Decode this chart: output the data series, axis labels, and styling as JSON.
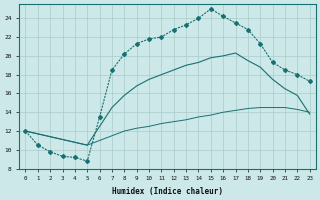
{
  "xlabel": "Humidex (Indice chaleur)",
  "background_color": "#cce8e8",
  "grid_color": "#aacccc",
  "line_color": "#1a7070",
  "xlim": [
    -0.5,
    23.5
  ],
  "ylim": [
    8,
    25.5
  ],
  "xticks": [
    0,
    1,
    2,
    3,
    4,
    5,
    6,
    7,
    8,
    9,
    10,
    11,
    12,
    13,
    14,
    15,
    16,
    17,
    18,
    19,
    20,
    21,
    22,
    23
  ],
  "yticks": [
    8,
    10,
    12,
    14,
    16,
    18,
    20,
    22,
    24
  ],
  "line1_x": [
    0,
    1,
    2,
    3,
    4,
    5,
    6,
    7,
    8,
    9,
    10,
    11,
    12,
    13,
    14,
    15,
    16,
    17,
    18,
    19,
    20,
    21,
    22,
    23
  ],
  "line1_y": [
    12,
    10.5,
    9.8,
    9.3,
    9.2,
    8.8,
    13.5,
    18.5,
    20.2,
    21.3,
    21.8,
    22.0,
    22.8,
    23.3,
    24.0,
    25.0,
    24.2,
    23.5,
    22.8,
    21.3,
    19.3,
    18.5,
    18.0,
    17.3
  ],
  "line2_x": [
    0,
    5,
    6,
    7,
    8,
    9,
    10,
    11,
    12,
    13,
    14,
    15,
    16,
    17,
    18,
    19,
    20,
    21,
    22,
    23
  ],
  "line2_y": [
    12,
    10.5,
    12.5,
    14.5,
    15.8,
    16.8,
    17.5,
    18.0,
    18.5,
    19.0,
    19.3,
    19.8,
    20.0,
    20.3,
    19.5,
    18.8,
    17.5,
    16.5,
    15.8,
    13.8
  ],
  "line3_x": [
    0,
    5,
    6,
    7,
    8,
    9,
    10,
    11,
    12,
    13,
    14,
    15,
    16,
    17,
    18,
    19,
    20,
    21,
    22,
    23
  ],
  "line3_y": [
    12,
    10.5,
    11.0,
    11.5,
    12.0,
    12.3,
    12.5,
    12.8,
    13.0,
    13.2,
    13.5,
    13.7,
    14.0,
    14.2,
    14.4,
    14.5,
    14.5,
    14.5,
    14.3,
    14.0
  ]
}
